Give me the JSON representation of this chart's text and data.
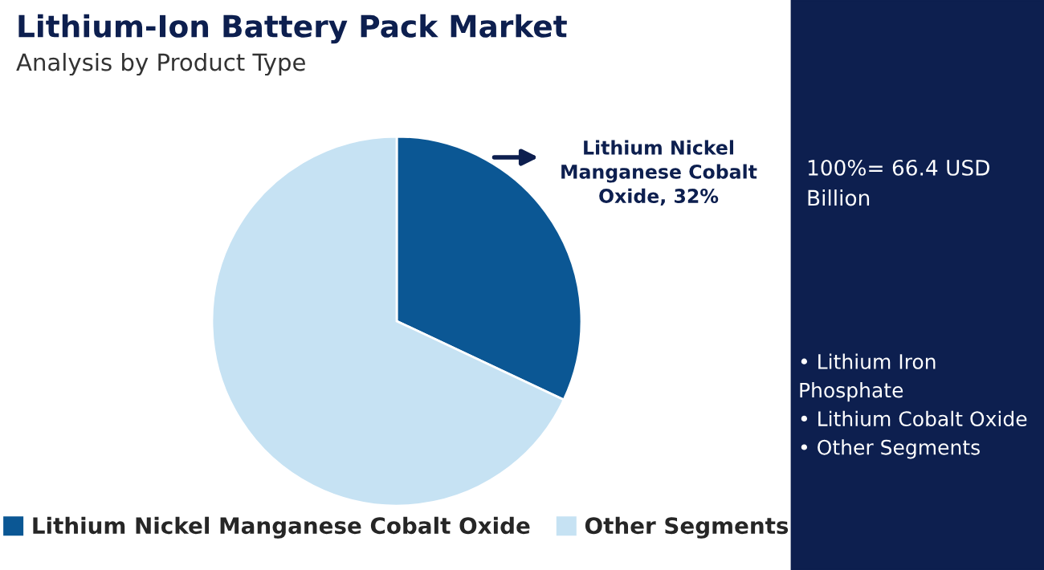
{
  "chart_data": {
    "type": "pie",
    "title": "Lithium-Ion Battery Pack Market",
    "subtitle": "Analysis by Product Type",
    "categories": [
      "Lithium Nickel Manganese Cobalt Oxide",
      "Other Segments"
    ],
    "values": [
      32,
      68
    ],
    "colors": [
      "#0b5794",
      "#c6e2f3"
    ],
    "annotations": [
      "Lithium Nickel Manganese Cobalt Oxide, 32%",
      "100%= 66.4 USD Billion",
      "• Lithium Iron Phosphate\n• Lithium Cobalt Oxide\n• Other Segments"
    ],
    "legend": "bottom"
  }
}
